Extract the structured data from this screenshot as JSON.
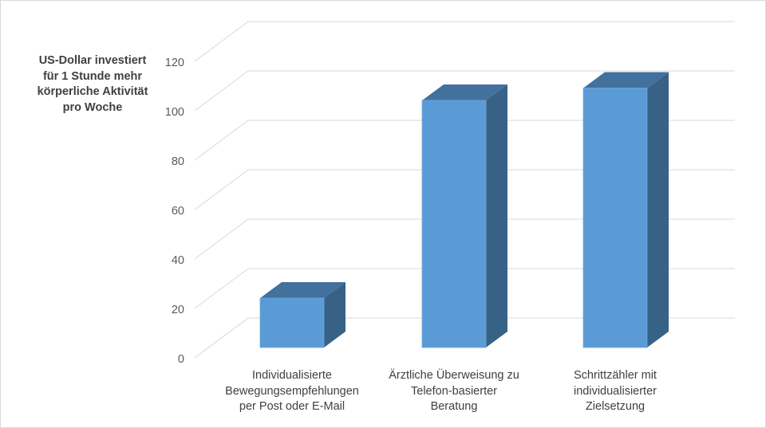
{
  "chart_data": {
    "type": "bar",
    "style": "3d-column",
    "ylabel": "US-Dollar investiert für 1 Stunde mehr körperliche Aktivität pro Woche",
    "ylabel_lines": [
      "US-Dollar investiert",
      "für 1 Stunde mehr",
      "körperliche Aktivität",
      "pro Woche"
    ],
    "categories": [
      [
        "Individualisierte",
        "Bewegungsempfehlungen",
        "per Post oder E-Mail"
      ],
      [
        "Ärztliche Überweisung zu",
        "Telefon-basierter",
        "Beratung"
      ],
      [
        "Schrittzähler mit",
        "individualisierter",
        "Zielsetzung"
      ]
    ],
    "values": [
      20,
      100,
      105
    ],
    "ylim": [
      0,
      120
    ],
    "yticks": [
      "0",
      "20",
      "40",
      "60",
      "80",
      "100",
      "120"
    ],
    "grid": true,
    "colors": {
      "front": "#5b9bd5",
      "top": "#41719c",
      "side": "#386285",
      "grid": "#d9d9d9",
      "text": "#595959"
    }
  }
}
